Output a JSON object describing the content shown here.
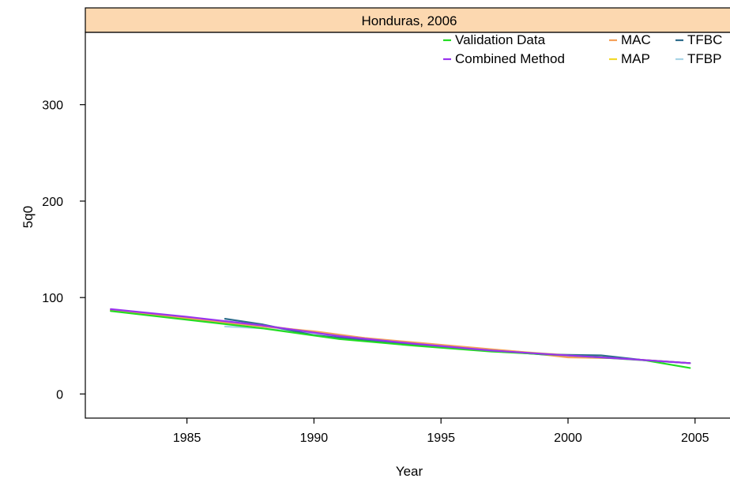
{
  "chart_data": {
    "type": "line",
    "title": "Honduras, 2006",
    "xlabel": "Year",
    "ylabel": "5q0",
    "xlim": [
      1981.0,
      2006.5
    ],
    "ylim": [
      -25,
      375
    ],
    "xticks": [
      1985,
      1990,
      1995,
      2000,
      2005
    ],
    "yticks": [
      0,
      100,
      200,
      300
    ],
    "xtick_labels": [
      "1985",
      "1990",
      "1995",
      "2000",
      "2005"
    ],
    "ytick_labels": [
      "0",
      "100",
      "200",
      "300"
    ],
    "strip_color": "#fcd8b0",
    "legend_position": "top-right",
    "series": [
      {
        "name": "Validation Data",
        "color": "#22dd22",
        "points": [
          [
            1982.0,
            86
          ],
          [
            1985.0,
            77
          ],
          [
            1988.0,
            68
          ],
          [
            1991.0,
            57
          ],
          [
            1994.0,
            50
          ],
          [
            1997.0,
            44
          ],
          [
            2000.0,
            40
          ],
          [
            2003.0,
            35
          ],
          [
            2004.8,
            27
          ]
        ]
      },
      {
        "name": "Combined Method",
        "color": "#9933ee",
        "points": [
          [
            1982.0,
            88
          ],
          [
            1985.0,
            80
          ],
          [
            1988.0,
            71
          ],
          [
            1991.0,
            60
          ],
          [
            1994.0,
            52
          ],
          [
            1997.0,
            45
          ],
          [
            2000.0,
            40
          ],
          [
            2002.5,
            36
          ],
          [
            2004.8,
            32
          ]
        ]
      },
      {
        "name": "MAC",
        "color": "#f5a05a",
        "points": [
          [
            1982.0,
            87
          ],
          [
            1984.0,
            81
          ],
          [
            1986.5,
            74
          ],
          [
            1988.0,
            70
          ],
          [
            1990.0,
            65
          ],
          [
            1992.0,
            58
          ],
          [
            1995.0,
            51
          ],
          [
            1998.0,
            44
          ],
          [
            2000.0,
            38
          ],
          [
            2002.0,
            37
          ],
          [
            2004.8,
            32
          ]
        ]
      },
      {
        "name": "MAP",
        "color": "#f2d92a",
        "points": [
          [
            1982.0,
            87
          ],
          [
            1985.0,
            79
          ],
          [
            1988.0,
            71
          ],
          [
            1990.0,
            64
          ],
          [
            1993.0,
            55
          ],
          [
            1996.0,
            48
          ],
          [
            1999.0,
            42
          ],
          [
            2002.0,
            37
          ],
          [
            2004.8,
            32
          ]
        ]
      },
      {
        "name": "TFBC",
        "color": "#2e6d8c",
        "points": [
          [
            1986.5,
            78
          ],
          [
            1988.0,
            72
          ],
          [
            1990.0,
            61
          ],
          [
            1993.0,
            53
          ],
          [
            1996.0,
            47
          ],
          [
            1999.0,
            41
          ],
          [
            2001.3,
            40
          ],
          [
            2003.0,
            35
          ],
          [
            2004.8,
            32
          ]
        ]
      },
      {
        "name": "TFBP",
        "color": "#a8d4e6",
        "points": [
          [
            1986.5,
            70
          ],
          [
            1988.0,
            68
          ],
          [
            1990.0,
            63
          ],
          [
            1993.0,
            54
          ],
          [
            1996.0,
            47
          ],
          [
            1999.0,
            41
          ],
          [
            2002.0,
            37
          ],
          [
            2004.8,
            32
          ]
        ]
      }
    ]
  }
}
